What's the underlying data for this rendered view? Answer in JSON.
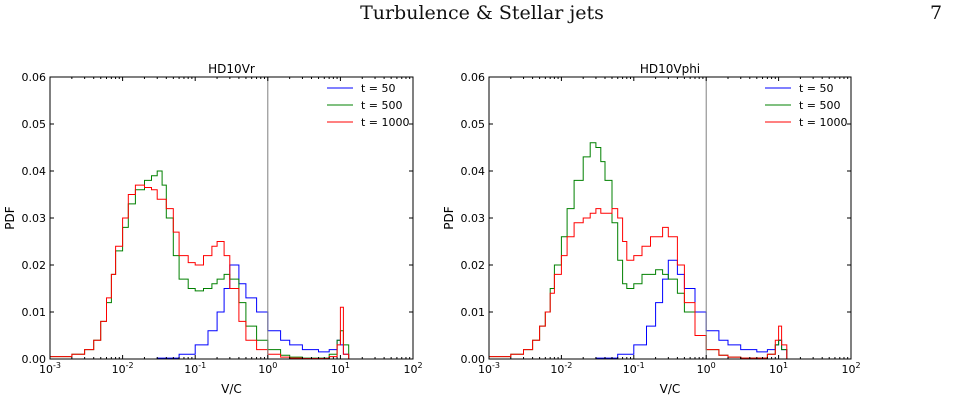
{
  "page": {
    "running_title": "Turbulence & Stellar jets",
    "page_number": "7"
  },
  "chart_data": [
    {
      "type": "line",
      "title": "HD10Vr",
      "xlabel": "V/C",
      "ylabel": "PDF",
      "x_scale": "log",
      "xlim": [
        0.001,
        100
      ],
      "ylim": [
        0,
        0.06
      ],
      "x_ticks": [
        "10^-3",
        "10^-2",
        "10^-1",
        "10^0",
        "10^1",
        "10^2"
      ],
      "y_ticks": [
        "0.00",
        "0.01",
        "0.02",
        "0.03",
        "0.04",
        "0.05",
        "0.06"
      ],
      "reference_line_x": 1,
      "legend_position": "top-right",
      "series": [
        {
          "name": "t = 50",
          "color": "#0000ff",
          "x": [
            0.001,
            0.01,
            0.03,
            0.06,
            0.1,
            0.15,
            0.2,
            0.25,
            0.3,
            0.4,
            0.5,
            0.7,
            1,
            1.5,
            2,
            3,
            5,
            7,
            9,
            10,
            11,
            13,
            20
          ],
          "y": [
            0.0,
            0.0,
            0.0002,
            0.001,
            0.003,
            0.006,
            0.01,
            0.015,
            0.02,
            0.016,
            0.013,
            0.01,
            0.006,
            0.004,
            0.003,
            0.002,
            0.0015,
            0.002,
            0.004,
            0.003,
            0.001,
            0.0,
            0.0
          ]
        },
        {
          "name": "t = 500",
          "color": "#008000",
          "x": [
            0.001,
            0.002,
            0.003,
            0.004,
            0.005,
            0.006,
            0.007,
            0.008,
            0.01,
            0.012,
            0.015,
            0.02,
            0.025,
            0.03,
            0.035,
            0.04,
            0.05,
            0.06,
            0.08,
            0.1,
            0.13,
            0.17,
            0.2,
            0.25,
            0.3,
            0.4,
            0.5,
            0.7,
            1,
            1.5,
            2,
            3,
            5,
            7,
            9,
            10,
            11,
            13,
            20
          ],
          "y": [
            0.0005,
            0.001,
            0.002,
            0.004,
            0.008,
            0.012,
            0.018,
            0.023,
            0.028,
            0.033,
            0.036,
            0.038,
            0.039,
            0.04,
            0.037,
            0.03,
            0.022,
            0.017,
            0.015,
            0.0145,
            0.015,
            0.016,
            0.017,
            0.018,
            0.017,
            0.012,
            0.007,
            0.004,
            0.002,
            0.0008,
            0.0004,
            0.0002,
            0.0002,
            0.001,
            0.004,
            0.006,
            0.003,
            0.0,
            0.0
          ]
        },
        {
          "name": "t = 1000",
          "color": "#ff0000",
          "x": [
            0.001,
            0.002,
            0.003,
            0.004,
            0.005,
            0.006,
            0.007,
            0.008,
            0.01,
            0.012,
            0.015,
            0.02,
            0.025,
            0.03,
            0.04,
            0.05,
            0.06,
            0.08,
            0.1,
            0.13,
            0.17,
            0.2,
            0.25,
            0.3,
            0.4,
            0.5,
            0.7,
            1,
            1.5,
            2,
            3,
            5,
            7,
            9,
            10,
            11,
            13,
            20
          ],
          "y": [
            0.0005,
            0.001,
            0.002,
            0.004,
            0.008,
            0.013,
            0.018,
            0.024,
            0.03,
            0.035,
            0.037,
            0.0365,
            0.036,
            0.034,
            0.032,
            0.027,
            0.022,
            0.0205,
            0.02,
            0.022,
            0.024,
            0.025,
            0.022,
            0.015,
            0.008,
            0.004,
            0.002,
            0.001,
            0.0004,
            0.0002,
            0.0001,
            0.0001,
            0.0005,
            0.003,
            0.011,
            0.001,
            0.0,
            0.0
          ]
        }
      ]
    },
    {
      "type": "line",
      "title": "HD10Vphi",
      "xlabel": "V/C",
      "ylabel": "PDF",
      "x_scale": "log",
      "xlim": [
        0.001,
        100
      ],
      "ylim": [
        0,
        0.06
      ],
      "x_ticks": [
        "10^-3",
        "10^-2",
        "10^-1",
        "10^0",
        "10^1",
        "10^2"
      ],
      "y_ticks": [
        "0.00",
        "0.01",
        "0.02",
        "0.03",
        "0.04",
        "0.05",
        "0.06"
      ],
      "reference_line_x": 1,
      "legend_position": "top-right",
      "series": [
        {
          "name": "t = 50",
          "color": "#0000ff",
          "x": [
            0.001,
            0.01,
            0.03,
            0.06,
            0.1,
            0.15,
            0.2,
            0.25,
            0.3,
            0.4,
            0.5,
            0.7,
            1,
            1.5,
            2,
            3,
            5,
            7,
            9,
            10,
            11,
            13,
            20
          ],
          "y": [
            0.0,
            0.0,
            0.0002,
            0.001,
            0.003,
            0.007,
            0.012,
            0.017,
            0.021,
            0.018,
            0.015,
            0.01,
            0.006,
            0.004,
            0.003,
            0.002,
            0.0015,
            0.002,
            0.003,
            0.004,
            0.002,
            0.0,
            0.0
          ]
        },
        {
          "name": "t = 500",
          "color": "#008000",
          "x": [
            0.001,
            0.002,
            0.003,
            0.004,
            0.005,
            0.006,
            0.007,
            0.008,
            0.01,
            0.012,
            0.015,
            0.02,
            0.025,
            0.03,
            0.035,
            0.04,
            0.05,
            0.06,
            0.07,
            0.08,
            0.1,
            0.13,
            0.17,
            0.2,
            0.25,
            0.3,
            0.4,
            0.5,
            0.7,
            1,
            1.5,
            2,
            3,
            5,
            7,
            9,
            10,
            11,
            13,
            20
          ],
          "y": [
            0.0005,
            0.001,
            0.002,
            0.004,
            0.007,
            0.01,
            0.015,
            0.02,
            0.026,
            0.032,
            0.038,
            0.043,
            0.046,
            0.045,
            0.042,
            0.038,
            0.029,
            0.021,
            0.016,
            0.015,
            0.016,
            0.018,
            0.018,
            0.019,
            0.018,
            0.017,
            0.014,
            0.01,
            0.005,
            0.002,
            0.0008,
            0.0004,
            0.0002,
            0.0002,
            0.001,
            0.003,
            0.004,
            0.002,
            0.0,
            0.0
          ]
        },
        {
          "name": "t = 1000",
          "color": "#ff0000",
          "x": [
            0.001,
            0.002,
            0.003,
            0.004,
            0.005,
            0.006,
            0.007,
            0.008,
            0.01,
            0.012,
            0.015,
            0.02,
            0.025,
            0.03,
            0.035,
            0.04,
            0.05,
            0.06,
            0.07,
            0.08,
            0.1,
            0.13,
            0.17,
            0.2,
            0.25,
            0.3,
            0.4,
            0.5,
            0.7,
            1,
            1.5,
            2,
            3,
            5,
            7,
            9,
            10,
            11,
            13,
            20
          ],
          "y": [
            0.0005,
            0.001,
            0.002,
            0.004,
            0.007,
            0.01,
            0.014,
            0.018,
            0.022,
            0.026,
            0.029,
            0.03,
            0.031,
            0.032,
            0.031,
            0.031,
            0.032,
            0.03,
            0.025,
            0.021,
            0.022,
            0.024,
            0.026,
            0.026,
            0.028,
            0.026,
            0.02,
            0.012,
            0.005,
            0.002,
            0.0008,
            0.0004,
            0.0002,
            0.0002,
            0.001,
            0.004,
            0.007,
            0.003,
            0.0,
            0.0
          ]
        }
      ]
    }
  ]
}
